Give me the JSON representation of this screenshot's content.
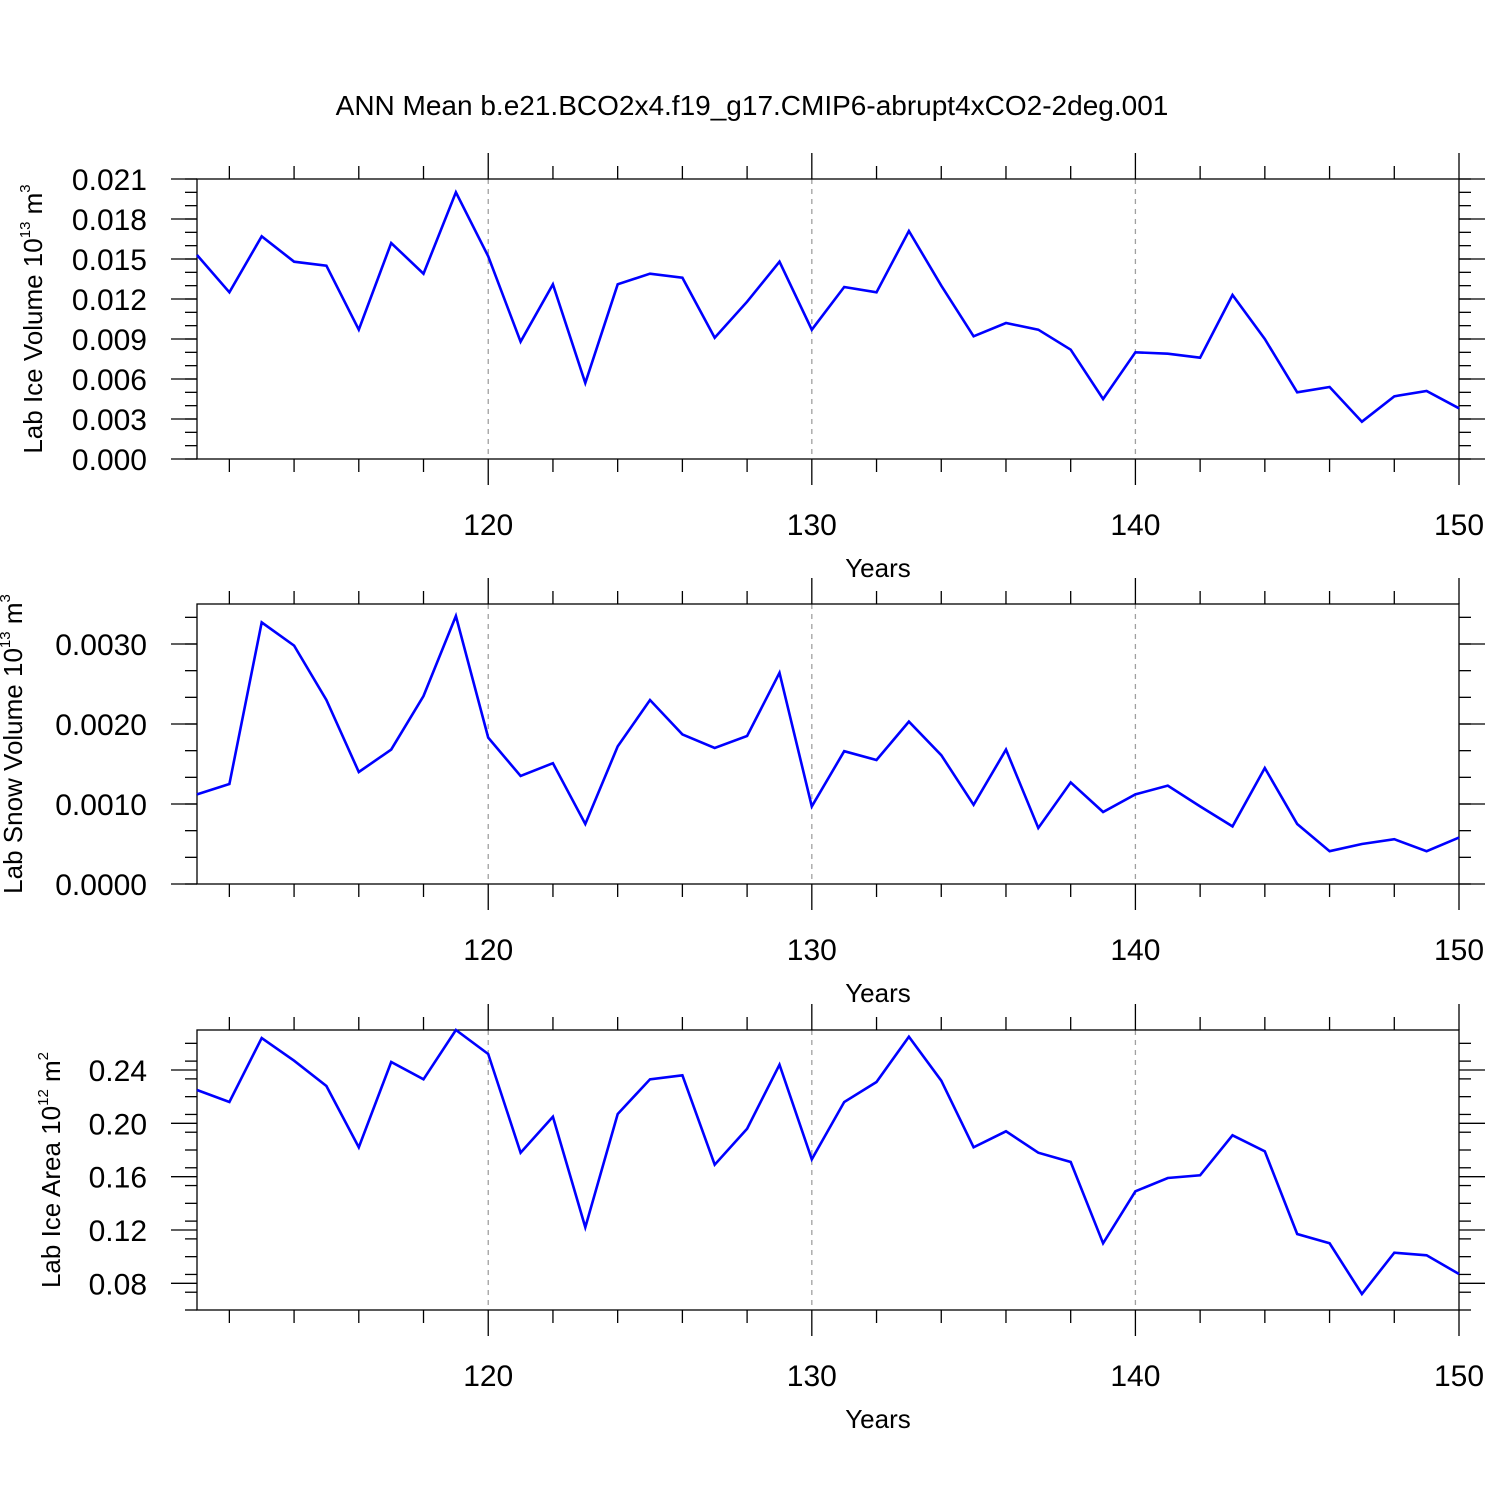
{
  "title": "ANN Mean b.e21.BCO2x4.f19_g17.CMIP6-abrupt4xCO2-2deg.001",
  "colors": {
    "line": "#0000ff",
    "axis": "#000000",
    "grid": "#a0a0a0"
  },
  "chart_data": [
    {
      "type": "line",
      "xlabel": "Years",
      "ylabel": {
        "text": "Lab Ice Volume 10",
        "exp": "13",
        "unit": " m",
        "unit_exp": "3"
      },
      "xlim": [
        111,
        150
      ],
      "ylim": [
        0,
        0.021
      ],
      "xticks": [
        120,
        130,
        140,
        150
      ],
      "yticks": [
        "0.000",
        "0.003",
        "0.006",
        "0.009",
        "0.012",
        "0.015",
        "0.018",
        "0.021"
      ],
      "x": [
        111,
        112,
        113,
        114,
        115,
        116,
        117,
        118,
        119,
        120,
        121,
        122,
        123,
        124,
        125,
        126,
        127,
        128,
        129,
        130,
        131,
        132,
        133,
        134,
        135,
        136,
        137,
        138,
        139,
        140,
        141,
        142,
        143,
        144,
        145,
        146,
        147,
        148,
        149,
        150
      ],
      "y": [
        0.0153,
        0.0125,
        0.0167,
        0.0148,
        0.0145,
        0.0097,
        0.0162,
        0.0139,
        0.02,
        0.0152,
        0.0088,
        0.0131,
        0.0057,
        0.0131,
        0.0139,
        0.0136,
        0.0091,
        0.0118,
        0.0148,
        0.0097,
        0.0129,
        0.0125,
        0.0171,
        0.013,
        0.0092,
        0.0102,
        0.0097,
        0.0082,
        0.0045,
        0.008,
        0.0079,
        0.0076,
        0.0123,
        0.009,
        0.005,
        0.0054,
        0.0028,
        0.0047,
        0.0051,
        0.0038
      ]
    },
    {
      "type": "line",
      "xlabel": "Years",
      "ylabel": {
        "text": "Lab Snow Volume 10",
        "exp": "13",
        "unit": " m",
        "unit_exp": "3"
      },
      "xlim": [
        111,
        150
      ],
      "ylim": [
        0,
        0.0035
      ],
      "xticks": [
        120,
        130,
        140,
        150
      ],
      "yticks": [
        "0.0000",
        "0.0010",
        "0.0020",
        "0.0030"
      ],
      "x": [
        111,
        112,
        113,
        114,
        115,
        116,
        117,
        118,
        119,
        120,
        121,
        122,
        123,
        124,
        125,
        126,
        127,
        128,
        129,
        130,
        131,
        132,
        133,
        134,
        135,
        136,
        137,
        138,
        139,
        140,
        141,
        142,
        143,
        144,
        145,
        146,
        147,
        148,
        149,
        150
      ],
      "y": [
        0.00112,
        0.00125,
        0.00327,
        0.00298,
        0.0023,
        0.0014,
        0.00168,
        0.00235,
        0.00335,
        0.00183,
        0.00135,
        0.00151,
        0.00075,
        0.00172,
        0.0023,
        0.00187,
        0.0017,
        0.00185,
        0.00264,
        0.00097,
        0.00166,
        0.00155,
        0.00203,
        0.00161,
        0.00099,
        0.00168,
        0.0007,
        0.00127,
        0.0009,
        0.00112,
        0.00123,
        0.00097,
        0.00072,
        0.00145,
        0.00075,
        0.00041,
        0.0005,
        0.00056,
        0.00041,
        0.00058
      ]
    },
    {
      "type": "line",
      "xlabel": "Years",
      "ylabel": {
        "text": "Lab Ice Area 10",
        "exp": "12",
        "unit": " m",
        "unit_exp": "2"
      },
      "xlim": [
        111,
        150
      ],
      "ylim": [
        0.06,
        0.27
      ],
      "xticks": [
        120,
        130,
        140,
        150
      ],
      "yticks": [
        "0.08",
        "0.12",
        "0.16",
        "0.20",
        "0.24"
      ],
      "x": [
        111,
        112,
        113,
        114,
        115,
        116,
        117,
        118,
        119,
        120,
        121,
        122,
        123,
        124,
        125,
        126,
        127,
        128,
        129,
        130,
        131,
        132,
        133,
        134,
        135,
        136,
        137,
        138,
        139,
        140,
        141,
        142,
        143,
        144,
        145,
        146,
        147,
        148,
        149,
        150
      ],
      "y": [
        0.225,
        0.216,
        0.264,
        0.247,
        0.228,
        0.182,
        0.246,
        0.233,
        0.27,
        0.252,
        0.178,
        0.205,
        0.122,
        0.207,
        0.233,
        0.236,
        0.169,
        0.196,
        0.244,
        0.173,
        0.216,
        0.231,
        0.265,
        0.232,
        0.182,
        0.194,
        0.178,
        0.171,
        0.11,
        0.149,
        0.159,
        0.161,
        0.191,
        0.179,
        0.117,
        0.11,
        0.072,
        0.103,
        0.101,
        0.087
      ]
    }
  ]
}
